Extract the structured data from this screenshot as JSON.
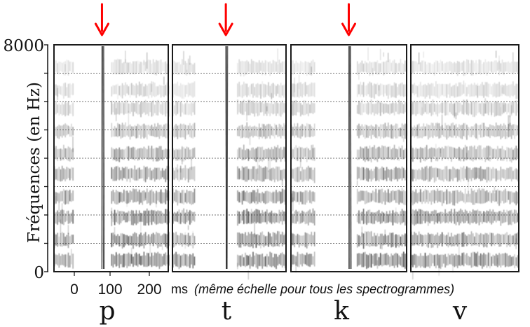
{
  "figure": {
    "y_axis": {
      "label": "Fréquences (en Hz)",
      "top_value": "8000",
      "bottom_value": "0"
    },
    "x_axis": {
      "tick_labels": [
        "0",
        "100",
        "200"
      ],
      "unit": "ms",
      "note": "(même échelle pour tous les spectrogrammes)"
    },
    "panels": [
      {
        "phoneme": "p",
        "has_burst": true,
        "burst_at": 0.42,
        "voicing_start": 0.5,
        "onset_end": 0.17
      },
      {
        "phoneme": "t",
        "has_burst": true,
        "burst_at": 0.47,
        "voicing_start": 0.57,
        "onset_end": 0.2
      },
      {
        "phoneme": "k",
        "has_burst": true,
        "burst_at": 0.5,
        "voicing_start": 0.57,
        "onset_end": 0.2
      },
      {
        "phoneme": "v",
        "has_burst": false,
        "burst_at": 0,
        "voicing_start": 0,
        "onset_end": 1
      }
    ],
    "arrow_color": "#ff0000",
    "frame_color": "#1a1a1a"
  }
}
